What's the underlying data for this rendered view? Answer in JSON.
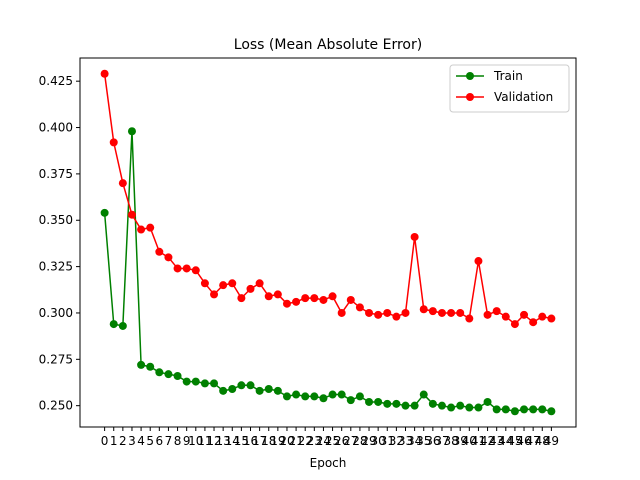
{
  "chart_data": {
    "type": "line",
    "title": "Loss (Mean Absolute Error)",
    "xlabel": "Epoch",
    "ylabel": "",
    "x": [
      0,
      1,
      2,
      3,
      4,
      5,
      6,
      7,
      8,
      9,
      10,
      11,
      12,
      13,
      14,
      15,
      16,
      17,
      18,
      19,
      20,
      21,
      22,
      23,
      24,
      25,
      26,
      27,
      28,
      29,
      30,
      31,
      32,
      33,
      34,
      35,
      36,
      37,
      38,
      39,
      40,
      41,
      42,
      43,
      44,
      45,
      46,
      47,
      48,
      49
    ],
    "xticks": [
      "0",
      "1",
      "2",
      "3",
      "4",
      "5",
      "6",
      "7",
      "8",
      "9",
      "10",
      "11",
      "12",
      "13",
      "14",
      "15",
      "16",
      "17",
      "18",
      "19",
      "20",
      "21",
      "22",
      "23",
      "24",
      "25",
      "26",
      "27",
      "28",
      "29",
      "30",
      "31",
      "32",
      "33",
      "34",
      "35",
      "36",
      "37",
      "38",
      "39",
      "40",
      "41",
      "42",
      "43",
      "44",
      "45",
      "46",
      "47",
      "48",
      "49"
    ],
    "yticks": [
      "0.250",
      "0.275",
      "0.300",
      "0.325",
      "0.350",
      "0.375",
      "0.400",
      "0.425"
    ],
    "ylim": [
      0.2385,
      0.4375
    ],
    "xlim": [
      -2.7,
      51.7
    ],
    "grid": false,
    "legend_position": "top-right",
    "series": [
      {
        "name": "Train",
        "color": "#008000",
        "values": [
          0.354,
          0.294,
          0.293,
          0.398,
          0.272,
          0.271,
          0.268,
          0.267,
          0.266,
          0.263,
          0.263,
          0.262,
          0.262,
          0.258,
          0.259,
          0.261,
          0.261,
          0.258,
          0.259,
          0.258,
          0.255,
          0.256,
          0.255,
          0.255,
          0.254,
          0.256,
          0.256,
          0.253,
          0.255,
          0.252,
          0.252,
          0.251,
          0.251,
          0.25,
          0.25,
          0.256,
          0.251,
          0.25,
          0.249,
          0.25,
          0.249,
          0.249,
          0.252,
          0.248,
          0.248,
          0.247,
          0.248,
          0.248,
          0.248,
          0.247
        ]
      },
      {
        "name": "Validation",
        "color": "#ff0000",
        "values": [
          0.429,
          0.392,
          0.37,
          0.353,
          0.345,
          0.346,
          0.333,
          0.33,
          0.324,
          0.324,
          0.323,
          0.316,
          0.31,
          0.315,
          0.316,
          0.308,
          0.313,
          0.316,
          0.309,
          0.31,
          0.305,
          0.306,
          0.308,
          0.308,
          0.307,
          0.309,
          0.3,
          0.307,
          0.303,
          0.3,
          0.299,
          0.3,
          0.298,
          0.3,
          0.341,
          0.302,
          0.301,
          0.3,
          0.3,
          0.3,
          0.297,
          0.328,
          0.299,
          0.301,
          0.298,
          0.294,
          0.299,
          0.295,
          0.298,
          0.297
        ]
      }
    ]
  }
}
